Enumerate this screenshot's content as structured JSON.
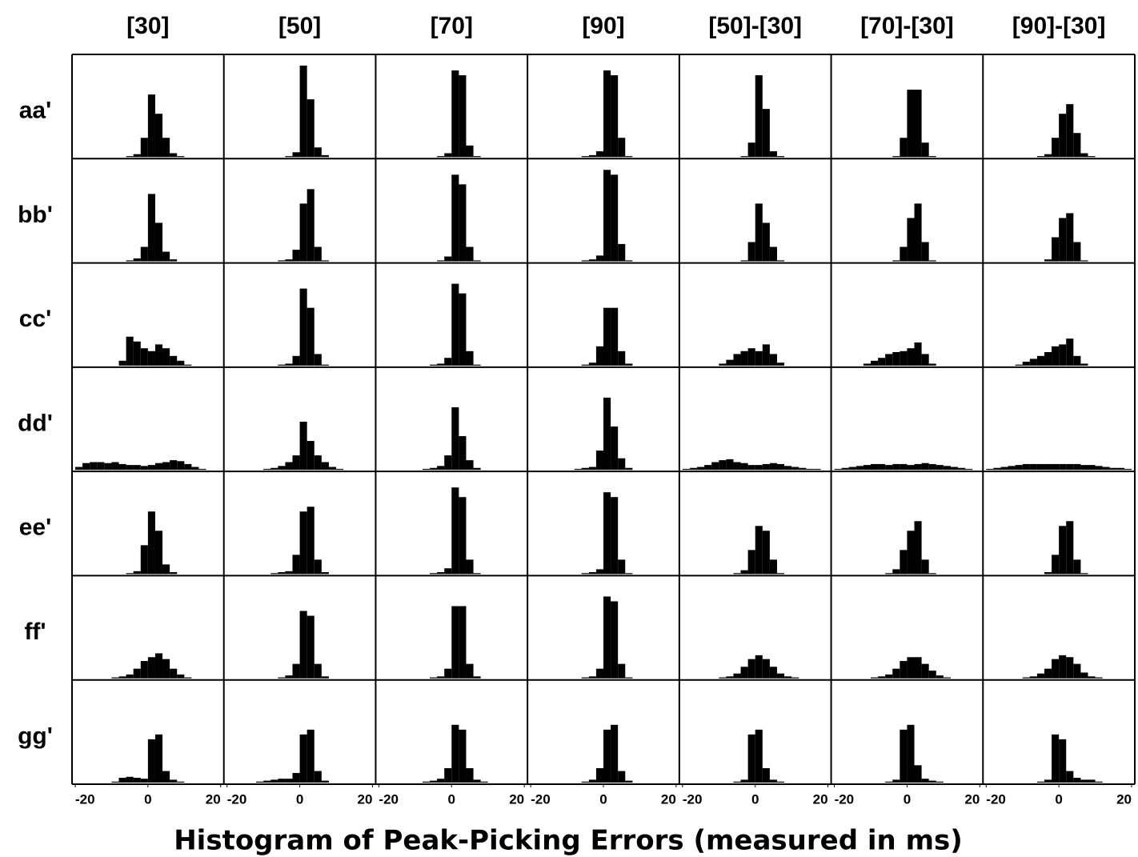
{
  "chart_data": {
    "type": "histogram",
    "columns": [
      "[30]",
      "[50]",
      "[70]",
      "[90]",
      "[50]-[30]",
      "[70]-[30]",
      "[90]-[30]"
    ],
    "rows": [
      "aa'",
      "bb'",
      "cc'",
      "dd'",
      "ee'",
      "ff'",
      "gg'"
    ],
    "xlabel": "Histogram of Peak-Picking Errors (measured in ms)",
    "bins": [
      -20,
      -18,
      -16,
      -14,
      -12,
      -10,
      -8,
      -6,
      -4,
      -2,
      0,
      2,
      4,
      6,
      8,
      10,
      12,
      14,
      16,
      18,
      20
    ],
    "xlim": [
      -20,
      20
    ],
    "xticks": [
      -20,
      0,
      20
    ],
    "ylim": [
      0,
      100
    ],
    "color": "#000000",
    "counts": [
      [
        [
          0,
          0,
          0,
          0,
          0,
          0,
          0,
          1,
          3,
          20,
          65,
          45,
          20,
          4,
          1,
          0,
          0,
          0,
          0,
          0
        ],
        [
          0,
          0,
          0,
          0,
          0,
          0,
          0,
          0,
          1,
          5,
          95,
          60,
          10,
          2,
          0,
          0,
          0,
          0,
          0,
          0
        ],
        [
          0,
          0,
          0,
          0,
          0,
          0,
          0,
          0,
          1,
          4,
          90,
          85,
          12,
          1,
          0,
          0,
          0,
          0,
          0,
          0
        ],
        [
          0,
          0,
          0,
          0,
          0,
          0,
          0,
          1,
          2,
          6,
          90,
          85,
          20,
          1,
          0,
          0,
          0,
          0,
          0,
          0
        ],
        [
          0,
          0,
          0,
          0,
          0,
          0,
          0,
          0,
          1,
          15,
          85,
          50,
          6,
          1,
          0,
          0,
          0,
          0,
          0,
          0
        ],
        [
          0,
          0,
          0,
          0,
          0,
          0,
          0,
          0,
          1,
          20,
          70,
          70,
          15,
          1,
          0,
          0,
          0,
          0,
          0,
          0
        ],
        [
          0,
          0,
          0,
          0,
          0,
          0,
          0,
          1,
          3,
          20,
          45,
          55,
          25,
          4,
          1,
          0,
          0,
          0,
          0,
          0
        ]
      ],
      [
        [
          0,
          0,
          0,
          0,
          0,
          0,
          0,
          1,
          3,
          15,
          70,
          40,
          10,
          2,
          0,
          0,
          0,
          0,
          0,
          0
        ],
        [
          0,
          0,
          0,
          0,
          0,
          0,
          0,
          1,
          2,
          12,
          60,
          75,
          15,
          1,
          0,
          0,
          0,
          0,
          0,
          0
        ],
        [
          0,
          0,
          0,
          0,
          0,
          0,
          0,
          0,
          1,
          5,
          90,
          80,
          15,
          1,
          0,
          0,
          0,
          0,
          0,
          0
        ],
        [
          0,
          0,
          0,
          0,
          0,
          0,
          0,
          1,
          2,
          6,
          95,
          90,
          18,
          1,
          0,
          0,
          0,
          0,
          0,
          0
        ],
        [
          0,
          0,
          0,
          0,
          0,
          0,
          0,
          0,
          1,
          20,
          60,
          40,
          15,
          1,
          0,
          0,
          0,
          0,
          0,
          0
        ],
        [
          0,
          0,
          0,
          0,
          0,
          0,
          0,
          0,
          1,
          15,
          45,
          60,
          20,
          1,
          0,
          0,
          0,
          0,
          0,
          0
        ],
        [
          0,
          0,
          0,
          0,
          0,
          0,
          0,
          0,
          2,
          25,
          45,
          50,
          20,
          1,
          0,
          0,
          0,
          0,
          0,
          0
        ]
      ],
      [
        [
          0,
          0,
          0,
          0,
          0,
          0,
          5,
          30,
          25,
          18,
          15,
          22,
          18,
          10,
          5,
          1,
          0,
          0,
          0,
          0
        ],
        [
          0,
          0,
          0,
          0,
          0,
          0,
          0,
          1,
          2,
          10,
          80,
          60,
          12,
          1,
          0,
          0,
          0,
          0,
          0,
          0
        ],
        [
          0,
          0,
          0,
          0,
          0,
          0,
          0,
          1,
          2,
          8,
          85,
          75,
          15,
          1,
          0,
          0,
          0,
          0,
          0,
          0
        ],
        [
          0,
          0,
          0,
          0,
          0,
          0,
          0,
          1,
          3,
          20,
          60,
          60,
          15,
          2,
          0,
          0,
          0,
          0,
          0,
          0
        ],
        [
          0,
          0,
          0,
          0,
          0,
          2,
          6,
          12,
          15,
          18,
          15,
          22,
          12,
          3,
          0,
          0,
          0,
          0,
          0,
          0
        ],
        [
          0,
          0,
          0,
          0,
          2,
          5,
          8,
          12,
          14,
          15,
          18,
          24,
          12,
          2,
          0,
          0,
          0,
          0,
          0,
          0
        ],
        [
          0,
          0,
          0,
          0,
          1,
          4,
          7,
          10,
          14,
          20,
          22,
          28,
          10,
          2,
          0,
          0,
          0,
          0,
          0,
          0
        ]
      ],
      [
        [
          3,
          7,
          8,
          8,
          7,
          8,
          6,
          5,
          5,
          4,
          5,
          7,
          8,
          10,
          9,
          6,
          3,
          1,
          0,
          0
        ],
        [
          0,
          0,
          0,
          0,
          0,
          1,
          2,
          4,
          8,
          15,
          50,
          30,
          15,
          8,
          3,
          1,
          0,
          0,
          0,
          0
        ],
        [
          0,
          0,
          0,
          0,
          0,
          0,
          1,
          2,
          4,
          15,
          65,
          35,
          10,
          2,
          0,
          0,
          0,
          0,
          0,
          0
        ],
        [
          0,
          0,
          0,
          0,
          0,
          0,
          1,
          2,
          3,
          20,
          75,
          45,
          12,
          2,
          0,
          0,
          0,
          0,
          0,
          0
        ],
        [
          1,
          2,
          3,
          5,
          8,
          10,
          11,
          8,
          7,
          5,
          5,
          6,
          7,
          6,
          4,
          3,
          2,
          1,
          1,
          0
        ],
        [
          1,
          2,
          3,
          4,
          5,
          6,
          6,
          5,
          6,
          6,
          5,
          6,
          7,
          6,
          5,
          4,
          3,
          2,
          1,
          0
        ],
        [
          1,
          2,
          3,
          4,
          5,
          6,
          6,
          6,
          6,
          6,
          6,
          6,
          6,
          5,
          5,
          4,
          3,
          2,
          2,
          1
        ]
      ],
      [
        [
          0,
          0,
          0,
          0,
          0,
          0,
          0,
          1,
          3,
          30,
          65,
          45,
          10,
          2,
          0,
          0,
          0,
          0,
          0,
          0
        ],
        [
          0,
          0,
          0,
          0,
          0,
          0,
          1,
          2,
          3,
          20,
          65,
          70,
          15,
          2,
          0,
          0,
          0,
          0,
          0,
          0
        ],
        [
          0,
          0,
          0,
          0,
          0,
          0,
          0,
          1,
          2,
          6,
          90,
          80,
          15,
          1,
          0,
          0,
          0,
          0,
          0,
          0
        ],
        [
          0,
          0,
          0,
          0,
          0,
          0,
          0,
          1,
          2,
          5,
          85,
          80,
          15,
          1,
          0,
          0,
          0,
          0,
          0,
          0
        ],
        [
          0,
          0,
          0,
          0,
          0,
          0,
          0,
          1,
          4,
          25,
          50,
          45,
          15,
          1,
          0,
          0,
          0,
          0,
          0,
          0
        ],
        [
          0,
          0,
          0,
          0,
          0,
          0,
          0,
          1,
          5,
          25,
          45,
          55,
          15,
          1,
          0,
          0,
          0,
          0,
          0,
          0
        ],
        [
          0,
          0,
          0,
          0,
          0,
          0,
          0,
          0,
          2,
          20,
          50,
          55,
          15,
          1,
          0,
          0,
          0,
          0,
          0,
          0
        ]
      ],
      [
        [
          0,
          0,
          0,
          0,
          0,
          1,
          2,
          4,
          10,
          18,
          22,
          26,
          20,
          10,
          4,
          1,
          0,
          0,
          0,
          0
        ],
        [
          0,
          0,
          0,
          0,
          0,
          0,
          0,
          1,
          3,
          15,
          70,
          65,
          15,
          2,
          0,
          0,
          0,
          0,
          0,
          0
        ],
        [
          0,
          0,
          0,
          0,
          0,
          0,
          0,
          1,
          2,
          10,
          75,
          75,
          15,
          2,
          0,
          0,
          0,
          0,
          0,
          0
        ],
        [
          0,
          0,
          0,
          0,
          0,
          0,
          0,
          1,
          2,
          10,
          85,
          80,
          15,
          1,
          0,
          0,
          0,
          0,
          0,
          0
        ],
        [
          0,
          0,
          0,
          0,
          0,
          1,
          2,
          5,
          12,
          20,
          24,
          20,
          12,
          5,
          2,
          1,
          0,
          0,
          0,
          0
        ],
        [
          0,
          0,
          0,
          0,
          0,
          1,
          2,
          4,
          10,
          18,
          22,
          22,
          15,
          8,
          3,
          1,
          0,
          0,
          0,
          0
        ],
        [
          0,
          0,
          0,
          0,
          0,
          1,
          2,
          5,
          10,
          20,
          24,
          22,
          15,
          6,
          2,
          1,
          0,
          0,
          0,
          0
        ]
      ],
      [
        [
          0,
          0,
          0,
          0,
          0,
          1,
          5,
          6,
          5,
          4,
          45,
          50,
          12,
          3,
          1,
          0,
          0,
          0,
          0,
          0
        ],
        [
          0,
          0,
          0,
          0,
          1,
          2,
          3,
          4,
          4,
          10,
          50,
          55,
          12,
          2,
          0,
          0,
          0,
          0,
          0,
          0
        ],
        [
          0,
          0,
          0,
          0,
          0,
          0,
          1,
          2,
          4,
          15,
          60,
          55,
          15,
          3,
          1,
          0,
          0,
          0,
          0,
          0
        ],
        [
          0,
          0,
          0,
          0,
          0,
          0,
          0,
          1,
          3,
          15,
          55,
          60,
          12,
          2,
          0,
          0,
          0,
          0,
          0,
          0
        ],
        [
          0,
          0,
          0,
          0,
          0,
          0,
          0,
          1,
          3,
          50,
          55,
          15,
          3,
          1,
          0,
          0,
          0,
          0,
          0,
          0
        ],
        [
          0,
          0,
          0,
          0,
          0,
          0,
          0,
          1,
          3,
          55,
          60,
          18,
          4,
          2,
          1,
          0,
          0,
          0,
          0,
          0
        ],
        [
          0,
          0,
          0,
          0,
          0,
          0,
          0,
          1,
          3,
          50,
          45,
          12,
          5,
          3,
          3,
          1,
          0,
          0,
          0,
          0
        ]
      ]
    ]
  }
}
